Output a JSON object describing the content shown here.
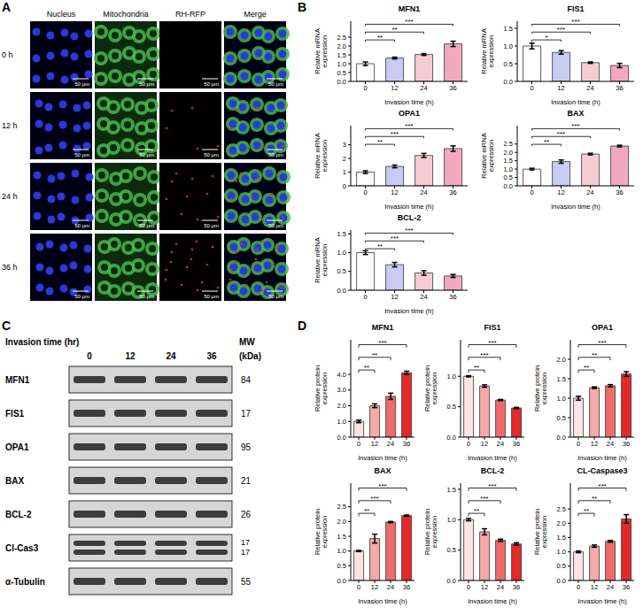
{
  "panel_labels": [
    "A",
    "B",
    "C",
    "D"
  ],
  "panel_a": {
    "columns": [
      "Nucleus",
      "Mitochondria",
      "RH-RFP",
      "Merge"
    ],
    "rows": [
      "0 h",
      "12 h",
      "24 h",
      "36 h"
    ],
    "scale_bar": "50 μm"
  },
  "panel_c": {
    "time_label": "Invasion time (hr)",
    "lanes": [
      "0",
      "12",
      "24",
      "36"
    ],
    "mw_label": "MW (kDa)",
    "rows": [
      {
        "protein": "MFN1",
        "mw": [
          84
        ]
      },
      {
        "protein": "FIS1",
        "mw": [
          17
        ]
      },
      {
        "protein": "OPA1",
        "mw": [
          95
        ]
      },
      {
        "protein": "BAX",
        "mw": [
          21
        ]
      },
      {
        "protein": "BCL-2",
        "mw": [
          26
        ]
      },
      {
        "protein": "Cl-Cas3",
        "mw": [
          17,
          17
        ]
      },
      {
        "protein": "α-Tubulin",
        "mw": [
          55
        ]
      }
    ]
  },
  "chart_data": [
    {
      "panel": "B",
      "type": "bar",
      "title": "MFN1",
      "x_label": "Invasion time (h)",
      "y_label": "Relative mRNA expression",
      "categories": [
        "0",
        "12",
        "24",
        "36"
      ],
      "values": [
        1.0,
        1.32,
        1.52,
        2.12
      ],
      "errors": [
        0.1,
        0.05,
        0.05,
        0.15
      ],
      "colors": [
        "#ffffff",
        "#c9cbf2",
        "#f6cbd2",
        "#f2a9bf"
      ],
      "ylim": [
        0,
        3.4
      ],
      "yticks": [
        {
          "value": 0,
          "label": "0.0"
        },
        {
          "value": 0.5,
          "label": "0.5"
        },
        {
          "value": 1,
          "label": "1.0"
        },
        {
          "value": 1.5,
          "label": "1.5"
        },
        {
          "value": 2,
          "label": "2.0"
        },
        {
          "value": 2.5,
          "label": "2.5"
        }
      ],
      "significance": [
        {
          "from": "0",
          "to": "12",
          "label": "**"
        },
        {
          "from": "0",
          "to": "24",
          "label": "**"
        },
        {
          "from": "0",
          "to": "36",
          "label": "***"
        }
      ]
    },
    {
      "panel": "B",
      "type": "bar",
      "title": "FIS1",
      "x_label": "Invasion time (h)",
      "y_label": "Relative mRNA expression",
      "categories": [
        "0",
        "12",
        "24",
        "36"
      ],
      "values": [
        1.0,
        0.82,
        0.53,
        0.45
      ],
      "errors": [
        0.08,
        0.05,
        0.02,
        0.06
      ],
      "colors": [
        "#ffffff",
        "#c9cbf2",
        "#f6cbd2",
        "#f2a9bf"
      ],
      "ylim": [
        0,
        1.7
      ],
      "yticks": [
        {
          "value": 0,
          "label": "0.0"
        },
        {
          "value": 0.5,
          "label": "0.5"
        },
        {
          "value": 1,
          "label": "1.0"
        },
        {
          "value": 1.5,
          "label": "1.5"
        }
      ],
      "significance": [
        {
          "from": "0",
          "to": "12",
          "label": "*"
        },
        {
          "from": "0",
          "to": "24",
          "label": "***"
        },
        {
          "from": "0",
          "to": "36",
          "label": "***"
        }
      ]
    },
    {
      "panel": "B",
      "type": "bar",
      "title": "OPA1",
      "x_label": "Invasion time (h)",
      "y_label": "Relative mRNA expression",
      "categories": [
        "0",
        "12",
        "24",
        "36"
      ],
      "values": [
        1.0,
        1.42,
        2.22,
        2.72
      ],
      "errors": [
        0.1,
        0.1,
        0.15,
        0.2
      ],
      "colors": [
        "#ffffff",
        "#c9cbf2",
        "#f6cbd2",
        "#f2a9bf"
      ],
      "ylim": [
        0,
        4.4
      ],
      "yticks": [
        0,
        1,
        2,
        3
      ],
      "significance": [
        {
          "from": "0",
          "to": "12",
          "label": "**"
        },
        {
          "from": "0",
          "to": "24",
          "label": "***"
        },
        {
          "from": "0",
          "to": "36",
          "label": "***"
        }
      ]
    },
    {
      "panel": "B",
      "type": "bar",
      "title": "BAX",
      "x_label": "Invasion time (h)",
      "y_label": "Relative mRNA expression",
      "categories": [
        "0",
        "12",
        "24",
        "36"
      ],
      "values": [
        1.0,
        1.45,
        1.9,
        2.38
      ],
      "errors": [
        0.05,
        0.1,
        0.05,
        0.05
      ],
      "colors": [
        "#ffffff",
        "#c9cbf2",
        "#f6cbd2",
        "#f2a9bf"
      ],
      "ylim": [
        0,
        3.6
      ],
      "yticks": [
        {
          "value": 0,
          "label": "0.0"
        },
        {
          "value": 0.5,
          "label": "0.5"
        },
        {
          "value": 1,
          "label": "1.0"
        },
        {
          "value": 1.5,
          "label": "1.5"
        },
        {
          "value": 2,
          "label": "2.0"
        },
        {
          "value": 2.5,
          "label": "2.5"
        }
      ],
      "significance": [
        {
          "from": "0",
          "to": "12",
          "label": "**"
        },
        {
          "from": "0",
          "to": "24",
          "label": "***"
        },
        {
          "from": "0",
          "to": "36",
          "label": "***"
        }
      ]
    },
    {
      "panel": "B",
      "type": "bar",
      "title": "BCL-2",
      "x_label": "Invasion time (h)",
      "y_label": "Relative mRNA expression",
      "categories": [
        "0",
        "12",
        "24",
        "36"
      ],
      "values": [
        1.0,
        0.68,
        0.46,
        0.38
      ],
      "errors": [
        0.05,
        0.06,
        0.06,
        0.04
      ],
      "colors": [
        "#ffffff",
        "#c9cbf2",
        "#f6cbd2",
        "#f2a9bf"
      ],
      "ylim": [
        0,
        1.6
      ],
      "yticks": [
        {
          "value": 0,
          "label": "0.0"
        },
        {
          "value": 0.5,
          "label": "0.5"
        },
        {
          "value": 1,
          "label": "1.0"
        },
        {
          "value": 1.5,
          "label": "1.5"
        }
      ],
      "significance": [
        {
          "from": "0",
          "to": "12",
          "label": "**"
        },
        {
          "from": "0",
          "to": "24",
          "label": "***"
        },
        {
          "from": "0",
          "to": "36",
          "label": "***"
        }
      ]
    },
    {
      "panel": "D",
      "type": "bar",
      "title": "MFN1",
      "x_label": "Invasion time (h)",
      "y_label": "Relative protein expression",
      "categories": [
        "0",
        "12",
        "24",
        "36"
      ],
      "values": [
        1.0,
        2.0,
        2.6,
        4.1
      ],
      "errors": [
        0.08,
        0.12,
        0.2,
        0.1
      ],
      "colors": [
        "#fde4e4",
        "#f6a8a8",
        "#ef6a6a",
        "#e12a2a"
      ],
      "ylim": [
        0,
        6.2
      ],
      "yticks": [
        {
          "value": 0,
          "label": "0.0"
        },
        {
          "value": 1,
          "label": "1.0"
        },
        {
          "value": 2,
          "label": "2.0"
        },
        {
          "value": 3,
          "label": "3.0"
        },
        {
          "value": 4,
          "label": "4.0"
        }
      ],
      "significance": [
        {
          "from": "0",
          "to": "12",
          "label": "**"
        },
        {
          "from": "0",
          "to": "24",
          "label": "**"
        },
        {
          "from": "0",
          "to": "36",
          "label": "***"
        }
      ]
    },
    {
      "panel": "D",
      "type": "bar",
      "title": "FIS1",
      "x_label": "Invasion time (h)",
      "y_label": "Relative protein expression",
      "categories": [
        "0",
        "12",
        "24",
        "36"
      ],
      "values": [
        1.0,
        0.84,
        0.61,
        0.48
      ],
      "errors": [
        0.01,
        0.02,
        0.01,
        0.01
      ],
      "colors": [
        "#fde4e4",
        "#f6a8a8",
        "#ef6a6a",
        "#e12a2a"
      ],
      "ylim": [
        0,
        1.6
      ],
      "yticks": [
        {
          "value": 0,
          "label": "0.0"
        },
        {
          "value": 0.5,
          "label": "0.5"
        },
        {
          "value": 1,
          "label": "1.0"
        }
      ],
      "significance": [
        {
          "from": "0",
          "to": "12",
          "label": "**"
        },
        {
          "from": "0",
          "to": "24",
          "label": "***"
        },
        {
          "from": "0",
          "to": "36",
          "label": "***"
        }
      ]
    },
    {
      "panel": "D",
      "type": "bar",
      "title": "OPA1",
      "x_label": "Invasion time (h)",
      "y_label": "Relative protein expression",
      "categories": [
        "0",
        "12",
        "24",
        "36"
      ],
      "values": [
        1.0,
        1.27,
        1.32,
        1.62
      ],
      "errors": [
        0.05,
        0.02,
        0.03,
        0.06
      ],
      "colors": [
        "#fde4e4",
        "#f6a8a8",
        "#ef6a6a",
        "#e12a2a"
      ],
      "ylim": [
        0,
        2.5
      ],
      "yticks": [
        {
          "value": 0,
          "label": "0.0"
        },
        {
          "value": 0.5,
          "label": "0.5"
        },
        {
          "value": 1,
          "label": "1.0"
        },
        {
          "value": 1.5,
          "label": "1.5"
        },
        {
          "value": 2,
          "label": "2.0"
        }
      ],
      "significance": [
        {
          "from": "0",
          "to": "12",
          "label": "**"
        },
        {
          "from": "0",
          "to": "24",
          "label": "**"
        },
        {
          "from": "0",
          "to": "36",
          "label": "***"
        }
      ]
    },
    {
      "panel": "D",
      "type": "bar",
      "title": "BAX",
      "x_label": "Invasion time (h)",
      "y_label": "Relative protein expression",
      "categories": [
        "0",
        "12",
        "24",
        "36"
      ],
      "values": [
        1.0,
        1.42,
        1.98,
        2.2
      ],
      "errors": [
        0.02,
        0.15,
        0.02,
        0.02
      ],
      "colors": [
        "#fde4e4",
        "#f6a8a8",
        "#ef6a6a",
        "#e12a2a"
      ],
      "ylim": [
        0,
        3.3
      ],
      "yticks": [
        {
          "value": 0,
          "label": "0.0"
        },
        {
          "value": 0.5,
          "label": "0.5"
        },
        {
          "value": 1,
          "label": "1.0"
        },
        {
          "value": 1.5,
          "label": "1.5"
        },
        {
          "value": 2,
          "label": "2.0"
        },
        {
          "value": 2.5,
          "label": "2.5"
        }
      ],
      "significance": [
        {
          "from": "0",
          "to": "12",
          "label": "**"
        },
        {
          "from": "0",
          "to": "24",
          "label": "***"
        },
        {
          "from": "0",
          "to": "36",
          "label": "***"
        }
      ]
    },
    {
      "panel": "D",
      "type": "bar",
      "title": "BCL-2",
      "x_label": "Invasion time (h)",
      "y_label": "Relative protein expression",
      "categories": [
        "0",
        "12",
        "24",
        "36"
      ],
      "values": [
        1.0,
        0.8,
        0.66,
        0.6
      ],
      "errors": [
        0.02,
        0.05,
        0.02,
        0.02
      ],
      "colors": [
        "#fde4e4",
        "#f6a8a8",
        "#ef6a6a",
        "#e12a2a"
      ],
      "ylim": [
        0,
        1.6
      ],
      "yticks": [
        {
          "value": 0,
          "label": "0.0"
        },
        {
          "value": 0.5,
          "label": "0.5"
        },
        {
          "value": 1,
          "label": "1.0"
        },
        {
          "value": 1.5,
          "label": "1.5"
        }
      ],
      "significance": [
        {
          "from": "0",
          "to": "12",
          "label": "**"
        },
        {
          "from": "0",
          "to": "24",
          "label": "***"
        },
        {
          "from": "0",
          "to": "36",
          "label": "***"
        }
      ]
    },
    {
      "panel": "D",
      "type": "bar",
      "title": "CL-Caspase3",
      "x_label": "Invasion time (h)",
      "y_label": "Relative protein expression",
      "categories": [
        "0",
        "12",
        "24",
        "36"
      ],
      "values": [
        1.0,
        1.2,
        1.37,
        2.15
      ],
      "errors": [
        0.03,
        0.04,
        0.03,
        0.15
      ],
      "colors": [
        "#fde4e4",
        "#f6a8a8",
        "#ef6a6a",
        "#e12a2a"
      ],
      "ylim": [
        0,
        3.4
      ],
      "yticks": [
        {
          "value": 0,
          "label": "0.0"
        },
        {
          "value": 0.5,
          "label": "0.5"
        },
        {
          "value": 1,
          "label": "1.0"
        },
        {
          "value": 1.5,
          "label": "1.5"
        },
        {
          "value": 2,
          "label": "2.0"
        },
        {
          "value": 2.5,
          "label": "2.5"
        }
      ],
      "significance": [
        {
          "from": "0",
          "to": "12",
          "label": "**"
        },
        {
          "from": "0",
          "to": "24",
          "label": "**"
        },
        {
          "from": "0",
          "to": "36",
          "label": "***"
        }
      ]
    }
  ]
}
